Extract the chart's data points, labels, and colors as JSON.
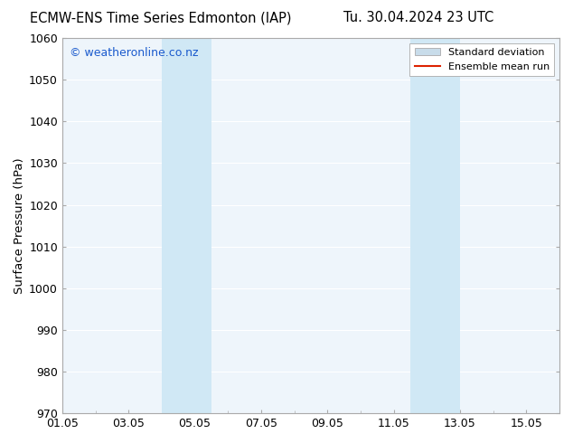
{
  "title_left": "ECMW-ENS Time Series Edmonton (IAP)",
  "title_right": "Tu. 30.04.2024 23 UTC",
  "ylabel": "Surface Pressure (hPa)",
  "ylim": [
    970,
    1060
  ],
  "yticks": [
    970,
    980,
    990,
    1000,
    1010,
    1020,
    1030,
    1040,
    1050,
    1060
  ],
  "xlabel_ticks": [
    "01.05",
    "03.05",
    "05.05",
    "07.05",
    "09.05",
    "11.05",
    "13.05",
    "15.05"
  ],
  "x_tick_positions": [
    1,
    3,
    5,
    7,
    9,
    11,
    13,
    15
  ],
  "xlim": [
    1,
    16
  ],
  "watermark": "© weatheronline.co.nz",
  "watermark_color": "#1a5acd",
  "background_color": "#ffffff",
  "plot_bg_color": "#eef5fb",
  "shaded_color": "#d0e8f5",
  "shaded_regions": [
    {
      "x_start": 4.0,
      "x_end": 5.5
    },
    {
      "x_start": 11.5,
      "x_end": 13.0
    }
  ],
  "legend_std_dev_color": "#c8dcea",
  "legend_mean_color": "#dd2200",
  "grid_color": "#ffffff",
  "spine_color": "#aaaaaa",
  "title_fontsize": 10.5,
  "tick_fontsize": 9,
  "ylabel_fontsize": 9.5,
  "watermark_fontsize": 9
}
